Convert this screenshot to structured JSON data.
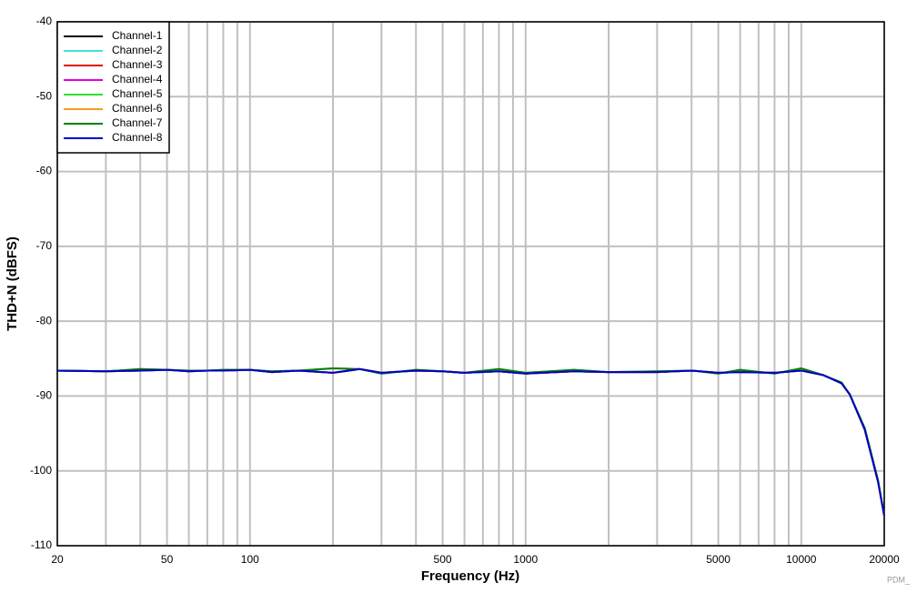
{
  "chart_data": {
    "type": "line",
    "xlabel": "Frequency (Hz)",
    "ylabel": "THD+N (dBFS)",
    "watermark": "PDM_",
    "xscale": "log",
    "grid": true,
    "legend": "upper left",
    "xlim": [
      20,
      20000
    ],
    "xticks": [
      20,
      50,
      100,
      500,
      1000,
      5000,
      10000,
      20000
    ],
    "xminorticks": [
      30,
      40,
      60,
      70,
      80,
      90,
      200,
      300,
      400,
      600,
      700,
      800,
      900,
      2000,
      3000,
      4000,
      6000,
      7000,
      8000,
      9000
    ],
    "ylim": [
      -110,
      -40
    ],
    "yticks": [
      -110,
      -100,
      -90,
      -80,
      -70,
      -60,
      -50,
      -40
    ],
    "x": [
      20,
      30,
      40,
      50,
      60,
      70,
      80,
      100,
      120,
      150,
      200,
      250,
      300,
      400,
      500,
      600,
      800,
      1000,
      1500,
      2000,
      3000,
      4000,
      5000,
      6000,
      8000,
      10000,
      12000,
      14000,
      15000,
      17000,
      19000,
      20000
    ],
    "series": [
      {
        "name": "Channel-1",
        "color": "#000000",
        "values": [
          -86.6,
          -86.7,
          -86.6,
          -86.5,
          -86.7,
          -86.6,
          -86.6,
          -86.5,
          -86.8,
          -86.6,
          -86.9,
          -86.4,
          -86.9,
          -86.6,
          -86.7,
          -86.9,
          -86.7,
          -87,
          -86.7,
          -86.8,
          -86.8,
          -86.6,
          -86.9,
          -86.8,
          -86.9,
          -86.6,
          -87.2,
          -88.3,
          -89.8,
          -94.5,
          -101.5,
          -106
        ]
      },
      {
        "name": "Channel-2",
        "color": "#40e0e0",
        "values": [
          -86.6,
          -86.7,
          -86.6,
          -86.5,
          -86.7,
          -86.6,
          -86.6,
          -86.5,
          -86.8,
          -86.6,
          -86.9,
          -86.4,
          -86.9,
          -86.6,
          -86.7,
          -86.9,
          -86.7,
          -87,
          -86.7,
          -86.8,
          -86.8,
          -86.6,
          -86.9,
          -86.8,
          -86.9,
          -86.6,
          -87.2,
          -88.3,
          -89.8,
          -94.5,
          -101.5,
          -106
        ]
      },
      {
        "name": "Channel-3",
        "color": "#e00000",
        "values": [
          -86.6,
          -86.7,
          -86.6,
          -86.5,
          -86.7,
          -86.6,
          -86.6,
          -86.5,
          -86.8,
          -86.6,
          -86.9,
          -86.4,
          -86.9,
          -86.6,
          -86.7,
          -86.9,
          -86.7,
          -87,
          -86.7,
          -86.8,
          -86.8,
          -86.6,
          -86.9,
          -86.8,
          -86.9,
          -86.6,
          -87.2,
          -88.3,
          -89.8,
          -94.5,
          -101.5,
          -106
        ]
      },
      {
        "name": "Channel-4",
        "color": "#e000e0",
        "values": [
          -86.6,
          -86.7,
          -86.6,
          -86.5,
          -86.7,
          -86.6,
          -86.6,
          -86.5,
          -86.8,
          -86.6,
          -86.9,
          -86.4,
          -86.9,
          -86.6,
          -86.7,
          -86.9,
          -86.7,
          -87,
          -86.7,
          -86.8,
          -86.8,
          -86.6,
          -86.9,
          -86.8,
          -86.9,
          -86.6,
          -87.2,
          -88.3,
          -89.8,
          -94.5,
          -101.5,
          -106
        ]
      },
      {
        "name": "Channel-5",
        "color": "#33dd33",
        "values": [
          -86.6,
          -86.7,
          -86.4,
          -86.5,
          -86.6,
          -86.6,
          -86.5,
          -86.5,
          -86.7,
          -86.6,
          -86.3,
          -86.4,
          -87,
          -86.5,
          -86.7,
          -86.9,
          -86.4,
          -86.9,
          -86.5,
          -86.8,
          -86.7,
          -86.6,
          -87,
          -86.5,
          -87,
          -86.3,
          -87.2,
          -88.2,
          -89.8,
          -94.3,
          -101.3,
          -106
        ]
      },
      {
        "name": "Channel-6",
        "color": "#f0a020",
        "values": [
          -86.6,
          -86.7,
          -86.6,
          -86.5,
          -86.7,
          -86.6,
          -86.6,
          -86.5,
          -86.8,
          -86.6,
          -86.9,
          -86.4,
          -86.9,
          -86.6,
          -86.7,
          -86.9,
          -86.7,
          -87,
          -86.7,
          -86.8,
          -86.8,
          -86.6,
          -86.9,
          -86.8,
          -86.9,
          -86.6,
          -87.2,
          -88.3,
          -89.8,
          -94.5,
          -101.5,
          -106
        ]
      },
      {
        "name": "Channel-7",
        "color": "#008000",
        "values": [
          -86.6,
          -86.7,
          -86.4,
          -86.5,
          -86.6,
          -86.6,
          -86.5,
          -86.5,
          -86.7,
          -86.6,
          -86.3,
          -86.4,
          -87,
          -86.5,
          -86.7,
          -86.9,
          -86.4,
          -86.9,
          -86.5,
          -86.8,
          -86.7,
          -86.6,
          -87,
          -86.5,
          -87,
          -86.3,
          -87.2,
          -88.2,
          -89.8,
          -94.3,
          -101.3,
          -106
        ]
      },
      {
        "name": "Channel-8",
        "color": "#0000cc",
        "values": [
          -86.6,
          -86.7,
          -86.6,
          -86.5,
          -86.7,
          -86.6,
          -86.6,
          -86.5,
          -86.8,
          -86.6,
          -86.9,
          -86.4,
          -86.9,
          -86.6,
          -86.7,
          -86.9,
          -86.7,
          -87,
          -86.7,
          -86.8,
          -86.8,
          -86.6,
          -86.9,
          -86.8,
          -86.9,
          -86.6,
          -87.2,
          -88.3,
          -89.8,
          -94.5,
          -101.5,
          -106
        ]
      }
    ]
  }
}
